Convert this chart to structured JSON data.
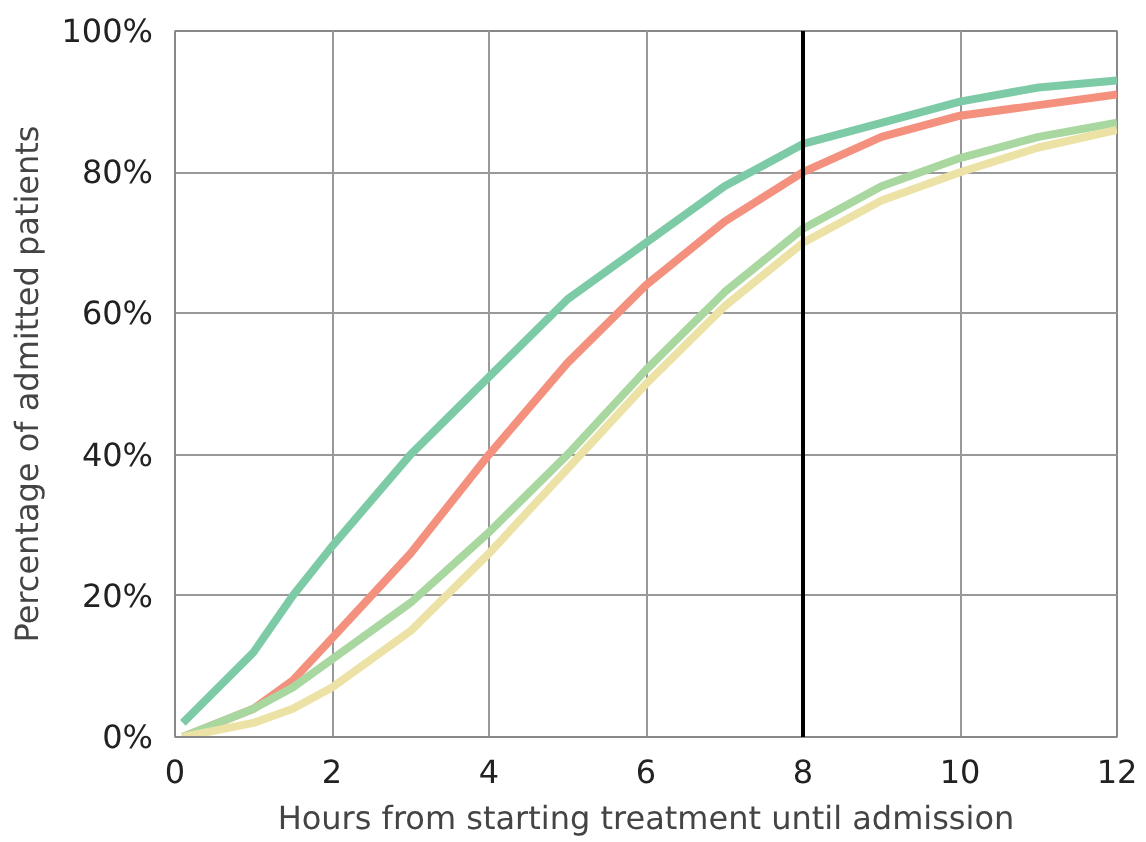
{
  "chart_data": {
    "type": "line",
    "xlabel": "Hours from starting treatment until admission",
    "ylabel": "Percentage of admitted patients",
    "x": [
      0.1,
      1,
      1.5,
      2,
      3,
      4,
      5,
      6,
      7,
      8,
      9,
      10,
      11,
      12
    ],
    "series": [
      {
        "color": "#7ccba6",
        "values": [
          2,
          12,
          20,
          27,
          40,
          51,
          62,
          70,
          78,
          84,
          87,
          90,
          92,
          93
        ]
      },
      {
        "color": "#f4907e",
        "values": [
          0,
          4,
          8,
          14,
          26,
          40,
          53,
          64,
          73,
          80,
          85,
          88,
          89.5,
          91
        ]
      },
      {
        "color": "#a8d7a0",
        "values": [
          0,
          4,
          7,
          11,
          19,
          29,
          40,
          52,
          63,
          72,
          78,
          82,
          85,
          87
        ]
      },
      {
        "color": "#ece2a6",
        "values": [
          0,
          2,
          4,
          7,
          15,
          26,
          38,
          50,
          61,
          70,
          76,
          80,
          83.5,
          86
        ]
      }
    ],
    "xlim": [
      0,
      12
    ],
    "ylim": [
      0,
      100
    ],
    "xticks": [
      0,
      2,
      4,
      6,
      8,
      10,
      12
    ],
    "yticks": [
      {
        "value": 0,
        "label": "0%"
      },
      {
        "value": 20,
        "label": "20%"
      },
      {
        "value": 40,
        "label": "40%"
      },
      {
        "value": 60,
        "label": "60%"
      },
      {
        "value": 80,
        "label": "80%"
      },
      {
        "value": 100,
        "label": "100%"
      }
    ],
    "grid": true,
    "ref_lines": [
      {
        "axis": "x",
        "value": 8,
        "color": "#000000"
      }
    ]
  }
}
